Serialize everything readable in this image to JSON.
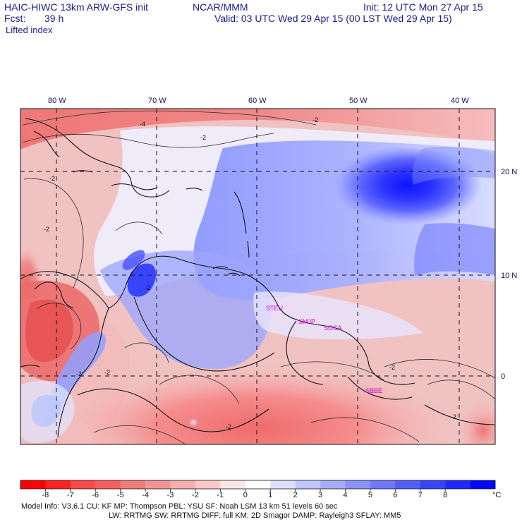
{
  "header": {
    "model_line": "HAIC-HIWC 13km ARW-GFS init",
    "center_line": "NCAR/MMM",
    "init_line": "Init: 12 UTC Mon 27 Apr 15",
    "fcst_label": "Fcst:",
    "fcst_value": "39 h",
    "valid_line": "Valid: 03 UTC Wed 29 Apr 15 (00 LST Wed 29 Apr 15)",
    "field_name": "Lifted index"
  },
  "map": {
    "lon_labels": [
      "80 W",
      "70 W",
      "60 W",
      "50 W",
      "40 W"
    ],
    "lat_labels": [
      "20 N",
      "10 N",
      "0"
    ],
    "stations": [
      "STEU",
      "SMJP",
      "SOCA",
      "SBBE"
    ],
    "contour_labels": [
      "-4",
      "-2",
      "-2",
      "-2",
      "-2",
      "-2",
      "-2",
      "-2",
      "-2",
      "-2",
      "-2"
    ]
  },
  "legend": {
    "colors": [
      "#ff0000",
      "#ff2020",
      "#ff4848",
      "#f86060",
      "#f07a7a",
      "#f39393",
      "#f7adad",
      "#fbc8c8",
      "#ffe6e6",
      "#ffffff",
      "#dde0ff",
      "#c0c6ff",
      "#a6acff",
      "#8a92ff",
      "#6f78ff",
      "#555dff",
      "#3a42ff",
      "#2028ff",
      "#0008ff"
    ],
    "tick_labels": [
      "-8",
      "-7",
      "-6",
      "-5",
      "-4",
      "-3",
      "-2",
      "-1",
      "0",
      "1",
      "2",
      "3",
      "4",
      "5",
      "6",
      "7",
      "8"
    ],
    "unit": "°C"
  },
  "footer": {
    "line1": "Model Info: V3.6.1     CU: KF       MP: Thompson      PBL: YSU       SF: Noah LSM      13 km    51 levels   60 sec",
    "line2": "LW: RRTMG    SW: RRTMG   DIFF: full    KM: 2D Smagor DAMP: Rayleigh3   SFLAY: MM5"
  }
}
